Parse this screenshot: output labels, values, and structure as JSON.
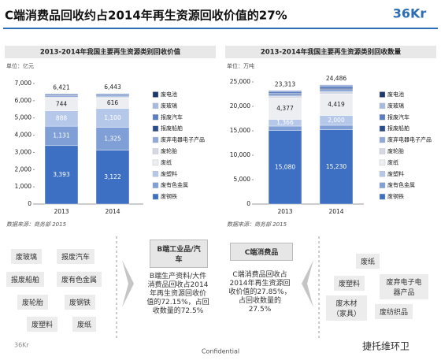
{
  "title": "C端消费品回收约占2014年再生资源回收价值的27%",
  "logo": "36Kr",
  "chart_data": [
    {
      "type": "bar",
      "stacked": true,
      "title": "2013-2014年我国主要再生资源类别回收价值",
      "unit": "单位：亿元",
      "source": "数据来源：商务部 2015",
      "categories": [
        "2013",
        "2014"
      ],
      "ylim": [
        0,
        7000
      ],
      "yticks": [
        0,
        {
          "value": 1000,
          "label": "1,000"
        },
        {
          "value": 2000,
          "label": "2,000"
        },
        {
          "value": 3000,
          "label": "3,000"
        },
        {
          "value": 4000,
          "label": "4,000"
        },
        {
          "value": 5000,
          "label": "5,000"
        },
        {
          "value": 6000,
          "label": "6,000"
        },
        {
          "value": 7000,
          "label": "7,000"
        }
      ],
      "totals": {
        "values": [
          6421,
          6443
        ],
        "value_labels": [
          "6,421",
          "6,443"
        ]
      },
      "series": [
        {
          "name": "废钢铁",
          "color": "#3d6fc2",
          "values": [
            3393,
            3122
          ],
          "value_labels": [
            "3,393",
            "3,122"
          ]
        },
        {
          "name": "废有色金属",
          "color": "#7f9fd6",
          "values": [
            1131,
            1325
          ],
          "value_labels": [
            "1,131",
            "1,325"
          ]
        },
        {
          "name": "废塑料",
          "color": "#b6c8ea",
          "values": [
            888,
            1100
          ],
          "value_labels": [
            "888",
            "1,100"
          ]
        },
        {
          "name": "废纸",
          "color": "#eceef2",
          "values": [
            744,
            616
          ],
          "value_labels": [
            "744",
            "616"
          ]
        },
        {
          "name": "废轮胎",
          "color": "#d3d8e2",
          "values": [
            60,
            65
          ]
        },
        {
          "name": "废弃电器电子产品",
          "color": "#8ea9d8",
          "values": [
            90,
            100
          ]
        },
        {
          "name": "报废船舶",
          "color": "#2c4c8c",
          "values": [
            40,
            35
          ]
        },
        {
          "name": "报废汽车",
          "color": "#5a7ec0",
          "values": [
            50,
            55
          ]
        },
        {
          "name": "废玻璃",
          "color": "#a9bbdd",
          "values": [
            20,
            20
          ]
        },
        {
          "name": "废电池",
          "color": "#1d376c",
          "values": [
            5,
            5
          ]
        }
      ]
    },
    {
      "type": "bar",
      "stacked": true,
      "title": "2013-2014年我国主要再生资源类别回收数量",
      "unit": "单位：万吨",
      "source": "数据来源：商务部 2015",
      "categories": [
        "2013",
        "2014"
      ],
      "ylim": [
        0,
        25000
      ],
      "yticks": [
        0,
        {
          "value": 5000,
          "label": "5,000"
        },
        {
          "value": 10000,
          "label": "10,000"
        },
        {
          "value": 15000,
          "label": "15,000"
        },
        {
          "value": 20000,
          "label": "20,000"
        },
        {
          "value": 25000,
          "label": "25,000"
        }
      ],
      "totals": {
        "values": [
          23313,
          24486
        ],
        "value_labels": [
          "23,313",
          "24,486"
        ]
      },
      "series": [
        {
          "name": "废钢铁",
          "color": "#3d6fc2",
          "values": [
            15080,
            15230
          ],
          "value_labels": [
            "15,080",
            "15,230"
          ]
        },
        {
          "name": "废有色金属",
          "color": "#7f9fd6",
          "values": [
            888,
            900
          ]
        },
        {
          "name": "废塑料",
          "color": "#b6c8ea",
          "values": [
            1366,
            2000
          ],
          "value_labels": [
            "1,366",
            "2,000"
          ]
        },
        {
          "name": "废纸",
          "color": "#eceef2",
          "values": [
            4377,
            4419
          ],
          "value_labels": [
            "4,377",
            "4,419"
          ]
        },
        {
          "name": "废轮胎",
          "color": "#d3d8e2",
          "values": [
            400,
            450
          ]
        },
        {
          "name": "废弃电器电子产品",
          "color": "#8ea9d8",
          "values": [
            350,
            450
          ]
        },
        {
          "name": "报废船舶",
          "color": "#2c4c8c",
          "values": [
            200,
            250
          ]
        },
        {
          "name": "报废汽车",
          "color": "#5a7ec0",
          "values": [
            400,
            450
          ]
        },
        {
          "name": "废玻璃",
          "color": "#a9bbdd",
          "values": [
            200,
            280
          ]
        },
        {
          "name": "废电池",
          "color": "#1d376c",
          "values": [
            52,
            57
          ]
        }
      ]
    }
  ],
  "diagram": {
    "b_items": [
      "废玻璃",
      "报废汽车",
      "报废船舶",
      "废有色金属",
      "废轮胎",
      "废钢铁",
      "废塑料",
      "废纸"
    ],
    "b_title": "B端工业品/汽车",
    "b_text": "B端生产资料/大件消费品回收占2014年再生资源回收价值的72.15%，占回收数量的72.5%",
    "c_title": "C端消费品",
    "c_text": "C端消费品回收占2014年再生资源回收价值的27.85%，占回收数量的27.5%",
    "c_items": [
      "废纸",
      "废塑料",
      "废弃电子电器产品",
      "废木材（家具）",
      "废纺织品"
    ]
  },
  "footer": {
    "logo": "36Kr",
    "confidential": "Confidential",
    "watermark": "捷托维环卫"
  }
}
